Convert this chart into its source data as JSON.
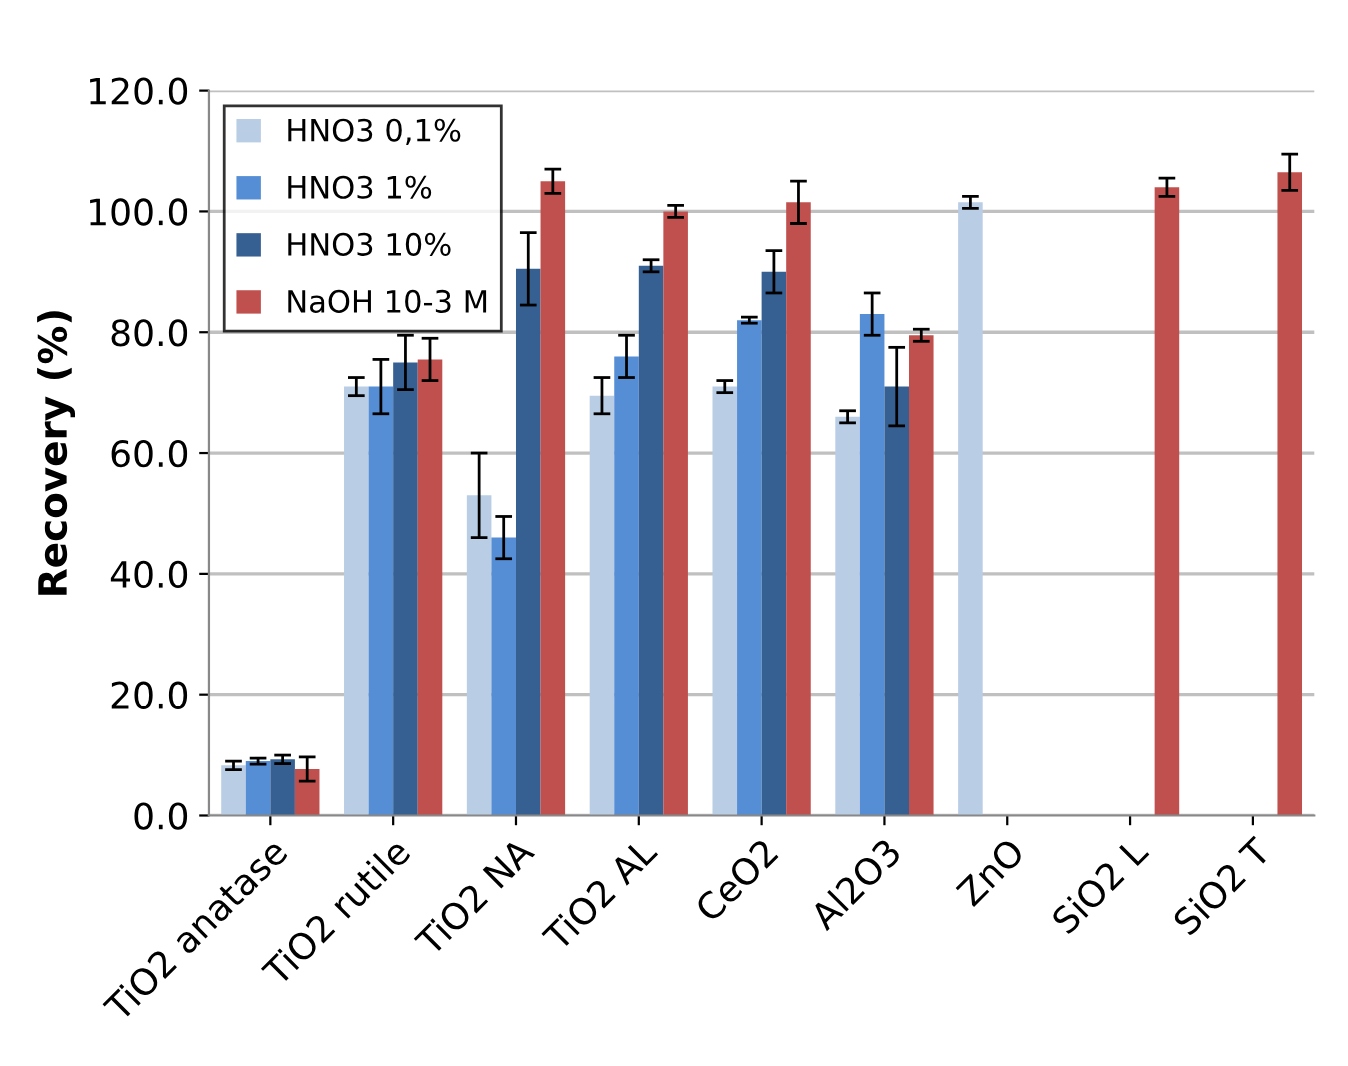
{
  "chart_data": {
    "type": "bar",
    "ylabel": "Recovery (%)",
    "categories": [
      "TiO2 anatase",
      "TiO2 rutile",
      "TiO2 NA",
      "TiO2 AL",
      "CeO2",
      "Al2O3",
      "ZnO",
      "SiO2 L",
      "SiO2 T"
    ],
    "series": [
      {
        "name": "HNO3 0,1%",
        "color": "#b9cde5",
        "values": [
          8.3,
          71,
          53,
          69.5,
          71,
          66,
          101.5,
          null,
          null
        ],
        "errors": [
          0.7,
          1.5,
          7,
          3,
          1,
          1,
          1,
          null,
          null
        ]
      },
      {
        "name": "HNO3 1%",
        "color": "#558ed5",
        "values": [
          9,
          71,
          46,
          76,
          82,
          83,
          null,
          null,
          null
        ],
        "errors": [
          0.5,
          4.5,
          3.5,
          3.5,
          0.5,
          3.5,
          null,
          null,
          null
        ]
      },
      {
        "name": "HNO3 10%",
        "color": "#376092",
        "values": [
          9.3,
          75,
          90.5,
          91,
          90,
          71,
          null,
          null,
          null
        ],
        "errors": [
          0.7,
          4.5,
          6,
          1,
          3.5,
          6.5,
          null,
          null,
          null
        ]
      },
      {
        "name": "NaOH 10-3 M",
        "color": "#c0504d",
        "values": [
          7.7,
          75.5,
          105,
          100,
          101.5,
          79.5,
          null,
          104,
          106.5
        ],
        "errors": [
          2,
          3.5,
          2,
          1,
          3.5,
          1,
          null,
          1.5,
          3
        ]
      }
    ],
    "ylim": [
      0,
      120
    ],
    "yticks": [
      {
        "value": 0,
        "label": "0.0"
      },
      {
        "value": 20,
        "label": "20.0"
      },
      {
        "value": 40,
        "label": "40.0"
      },
      {
        "value": 60,
        "label": "60.0"
      },
      {
        "value": 80,
        "label": "80.0"
      },
      {
        "value": 100,
        "label": "100.0"
      },
      {
        "value": 120,
        "label": "120.0"
      }
    ],
    "grid": "y",
    "legend": "top left"
  }
}
